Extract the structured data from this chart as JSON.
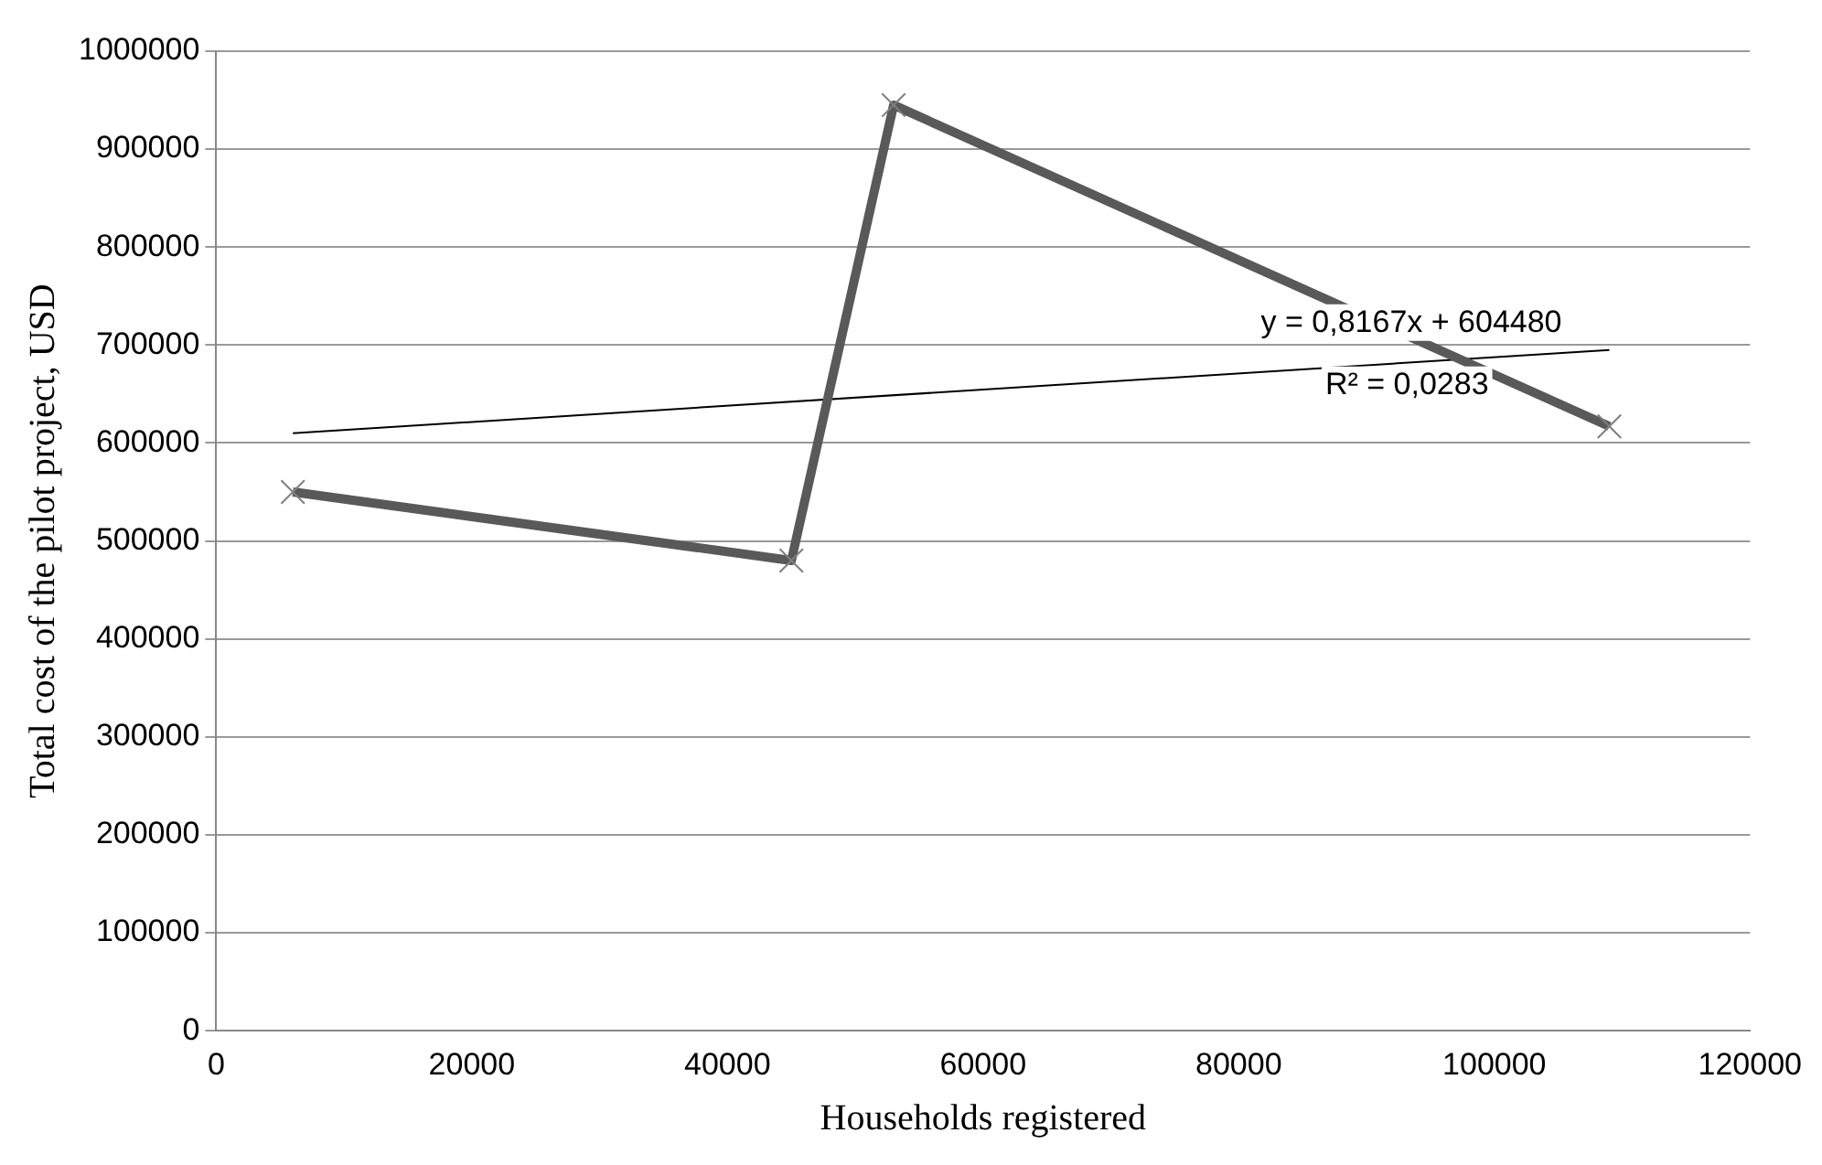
{
  "chart_data": {
    "type": "line",
    "xlabel": "Households registered",
    "ylabel": "Total cost of the pilot project, USD",
    "series": [
      {
        "color": "#595959",
        "x": [
          6000,
          45000,
          53000,
          109000
        ],
        "values": [
          550000,
          480000,
          945000,
          617000
        ],
        "marker": "cross"
      },
      {
        "color": "#000000",
        "x": [
          6000,
          109000
        ],
        "values": [
          610000,
          695000
        ],
        "marker": "none"
      }
    ],
    "annotations": [
      "y = 0,8167x + 604480",
      "R² = 0,0283"
    ],
    "xlim": [
      0,
      120000
    ],
    "xticks": [
      0,
      20000,
      40000,
      60000,
      80000,
      100000,
      120000
    ],
    "ylim": [
      0,
      1000000
    ],
    "yticks": [
      0,
      100000,
      200000,
      300000,
      400000,
      500000,
      600000,
      700000,
      800000,
      900000,
      1000000
    ],
    "grid": "y",
    "legend": false
  }
}
